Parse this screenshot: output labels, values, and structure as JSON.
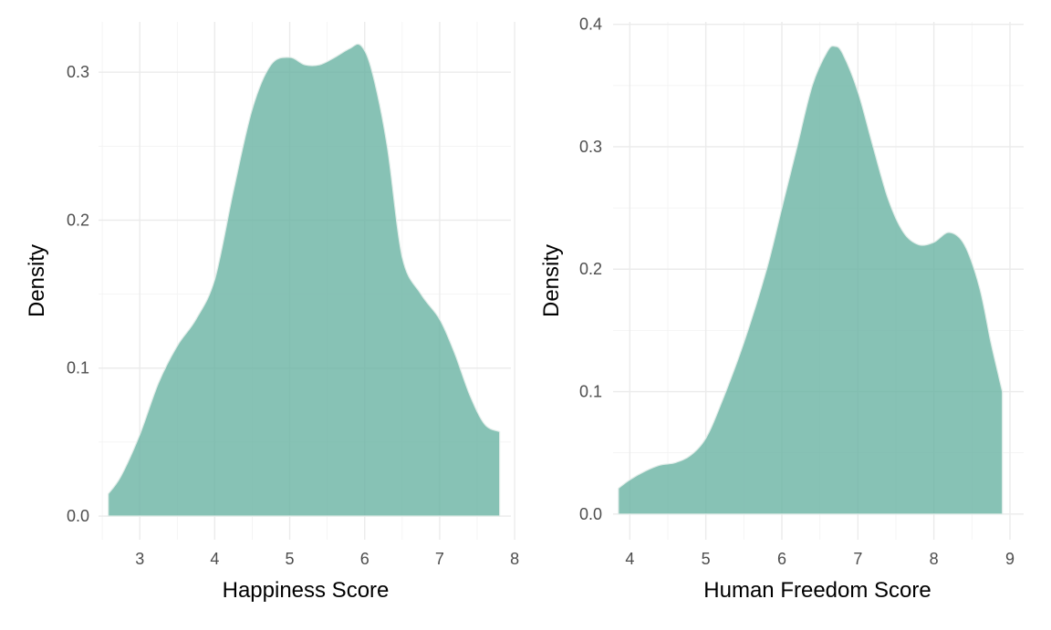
{
  "colors": {
    "fill": "#69b3a2",
    "fill_opacity": 0.8,
    "grid": "#ebebeb",
    "tick_text": "#4d4d4d"
  },
  "chart_data": [
    {
      "type": "area",
      "title": "",
      "xlabel": "Happiness Score",
      "ylabel": "Density",
      "xlim": [
        2.45,
        7.95
      ],
      "ylim": [
        -0.016,
        0.334
      ],
      "xticks": [
        3,
        4,
        5,
        6,
        7,
        8
      ],
      "yticks": [
        0.0,
        0.1,
        0.2,
        0.3
      ],
      "xtick_labels": [
        "3",
        "4",
        "5",
        "6",
        "7",
        "8"
      ],
      "ytick_labels": [
        "0.0",
        "0.1",
        "0.2",
        "0.3"
      ],
      "x": [
        2.58,
        2.75,
        3.0,
        3.25,
        3.5,
        3.75,
        4.0,
        4.25,
        4.5,
        4.75,
        5.0,
        5.2,
        5.4,
        5.6,
        5.8,
        5.95,
        6.1,
        6.3,
        6.5,
        6.75,
        7.0,
        7.2,
        7.4,
        7.6,
        7.8
      ],
      "y": [
        0.015,
        0.027,
        0.055,
        0.09,
        0.115,
        0.133,
        0.16,
        0.22,
        0.275,
        0.305,
        0.31,
        0.305,
        0.305,
        0.31,
        0.316,
        0.318,
        0.3,
        0.25,
        0.175,
        0.15,
        0.133,
        0.11,
        0.082,
        0.062,
        0.057
      ]
    },
    {
      "type": "area",
      "title": "",
      "xlabel": "Human Freedom Score",
      "ylabel": "Density",
      "xlim": [
        3.78,
        9.18
      ],
      "ylim": [
        -0.021,
        0.402
      ],
      "xticks": [
        4,
        5,
        6,
        7,
        8,
        9
      ],
      "yticks": [
        0.0,
        0.1,
        0.2,
        0.3,
        0.4
      ],
      "xtick_labels": [
        "4",
        "5",
        "6",
        "7",
        "8",
        "9"
      ],
      "ytick_labels": [
        "0.0",
        "0.1",
        "0.2",
        "0.3",
        "0.4"
      ],
      "x": [
        3.85,
        4.0,
        4.2,
        4.4,
        4.6,
        4.8,
        5.0,
        5.2,
        5.5,
        5.8,
        6.0,
        6.2,
        6.4,
        6.6,
        6.7,
        6.8,
        7.0,
        7.2,
        7.4,
        7.6,
        7.8,
        8.0,
        8.2,
        8.4,
        8.6,
        8.75,
        8.9
      ],
      "y": [
        0.021,
        0.028,
        0.035,
        0.04,
        0.042,
        0.048,
        0.062,
        0.09,
        0.14,
        0.2,
        0.25,
        0.3,
        0.35,
        0.378,
        0.382,
        0.376,
        0.345,
        0.3,
        0.257,
        0.23,
        0.22,
        0.222,
        0.23,
        0.22,
        0.185,
        0.14,
        0.1
      ]
    }
  ]
}
